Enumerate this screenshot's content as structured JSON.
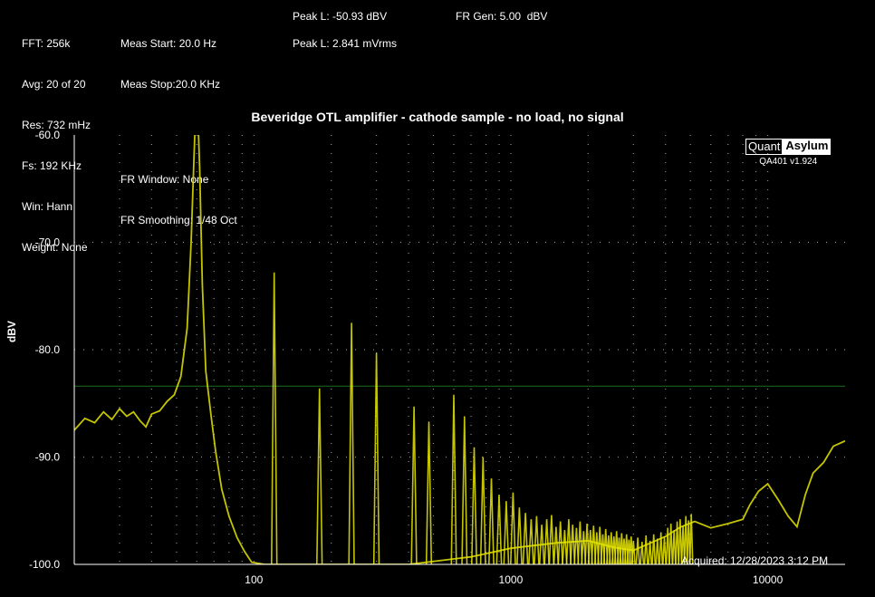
{
  "info": {
    "col1": [
      "FFT: 256k",
      "Avg: 20 of 20",
      "Res: 732 mHz",
      "Fs: 192 KHz",
      "Win: Hann",
      "Weight: None"
    ],
    "col2": [
      "Meas Start: 20.0 Hz",
      "Meas Stop:20.0 KHz",
      "FR Window: None",
      "FR Smoothing: 1/48 Oct"
    ],
    "peak_dbv": "Peak L: -50.93 dBV",
    "peak_mvrms": "Peak L: 2.841 mVrms",
    "fr_gen": "FR Gen: 5.00  dBV"
  },
  "logo": {
    "left": "Quant",
    "right": "Asylum",
    "version": "QA401 v1.924"
  },
  "acquired": "Acquired: 12/28/2023  3:12 PM",
  "colors": {
    "trace": "#e6e600",
    "grid_dot": "#ffffff",
    "ref_line": "#1e6b1e",
    "axis": "#ffffff"
  },
  "chart_data": {
    "type": "line",
    "title": "Beveridge OTL amplifier - cathode sample - no load, no signal",
    "ylabel": "dBV",
    "xlabel": "",
    "x_scale": "log",
    "xlim": [
      20,
      20000
    ],
    "ylim": [
      -100,
      -60
    ],
    "x_ticks": [
      100,
      1000,
      10000
    ],
    "x_tick_labels": [
      "100",
      "1000",
      "10000"
    ],
    "y_ticks": [
      -60,
      -70,
      -80,
      -90,
      -100
    ],
    "y_tick_labels": [
      "-60.0",
      "-70.0",
      "-80.0",
      "-90.0",
      "-100.0"
    ],
    "grid": true,
    "reference_line_dbv": -83.4,
    "noise_floor": [
      {
        "x": 20,
        "y": -87.5
      },
      {
        "x": 22,
        "y": -86.4
      },
      {
        "x": 24,
        "y": -86.8
      },
      {
        "x": 26,
        "y": -85.8
      },
      {
        "x": 28,
        "y": -86.5
      },
      {
        "x": 30,
        "y": -85.5
      },
      {
        "x": 32,
        "y": -86.2
      },
      {
        "x": 34,
        "y": -85.8
      },
      {
        "x": 36,
        "y": -86.6
      },
      {
        "x": 38,
        "y": -87.2
      },
      {
        "x": 40,
        "y": -86.0
      },
      {
        "x": 43,
        "y": -85.7
      },
      {
        "x": 46,
        "y": -84.8
      },
      {
        "x": 49,
        "y": -84.2
      },
      {
        "x": 52,
        "y": -82.5
      },
      {
        "x": 55,
        "y": -78.0
      },
      {
        "x": 57,
        "y": -70.0
      },
      {
        "x": 58.5,
        "y": -62.0
      },
      {
        "x": 59.5,
        "y": -57.0
      },
      {
        "x": 60.5,
        "y": -58.0
      },
      {
        "x": 61.5,
        "y": -63.0
      },
      {
        "x": 63,
        "y": -74.0
      },
      {
        "x": 65,
        "y": -82.0
      },
      {
        "x": 68,
        "y": -86.0
      },
      {
        "x": 71,
        "y": -89.5
      },
      {
        "x": 75,
        "y": -93.0
      },
      {
        "x": 80,
        "y": -95.5
      },
      {
        "x": 86,
        "y": -97.5
      },
      {
        "x": 92,
        "y": -98.8
      },
      {
        "x": 98,
        "y": -99.8
      },
      {
        "x": 110,
        "y": -100
      },
      {
        "x": 400,
        "y": -100
      },
      {
        "x": 700,
        "y": -99.3
      },
      {
        "x": 1000,
        "y": -98.5
      },
      {
        "x": 1500,
        "y": -98.0
      },
      {
        "x": 2000,
        "y": -97.8
      },
      {
        "x": 2500,
        "y": -98.4
      },
      {
        "x": 3000,
        "y": -98.7
      },
      {
        "x": 3500,
        "y": -98.0
      },
      {
        "x": 4000,
        "y": -97.4
      },
      {
        "x": 4600,
        "y": -96.5
      },
      {
        "x": 5200,
        "y": -96.0
      },
      {
        "x": 6000,
        "y": -96.6
      },
      {
        "x": 7000,
        "y": -96.2
      },
      {
        "x": 8000,
        "y": -95.8
      },
      {
        "x": 8500,
        "y": -94.5
      },
      {
        "x": 9200,
        "y": -93.2
      },
      {
        "x": 10000,
        "y": -92.5
      },
      {
        "x": 11000,
        "y": -94.0
      },
      {
        "x": 12000,
        "y": -95.5
      },
      {
        "x": 13000,
        "y": -96.5
      },
      {
        "x": 14000,
        "y": -93.5
      },
      {
        "x": 15000,
        "y": -91.5
      },
      {
        "x": 16500,
        "y": -90.5
      },
      {
        "x": 18000,
        "y": -89.0
      },
      {
        "x": 20000,
        "y": -88.5
      }
    ],
    "harmonics": [
      {
        "x": 120,
        "y": -72.8
      },
      {
        "x": 180,
        "y": -83.6
      },
      {
        "x": 240,
        "y": -77.5
      },
      {
        "x": 300,
        "y": -80.3
      },
      {
        "x": 420,
        "y": -85.3
      },
      {
        "x": 480,
        "y": -86.7
      },
      {
        "x": 600,
        "y": -84.2
      },
      {
        "x": 660,
        "y": -86.2
      },
      {
        "x": 720,
        "y": -89.1
      },
      {
        "x": 780,
        "y": -90.0
      },
      {
        "x": 840,
        "y": -92.0
      },
      {
        "x": 900,
        "y": -93.5
      },
      {
        "x": 960,
        "y": -94.1
      },
      {
        "x": 1020,
        "y": -93.3
      },
      {
        "x": 1080,
        "y": -94.7
      },
      {
        "x": 1140,
        "y": -95.2
      },
      {
        "x": 1200,
        "y": -95.8
      },
      {
        "x": 1260,
        "y": -95.5
      },
      {
        "x": 1320,
        "y": -96.3
      },
      {
        "x": 1380,
        "y": -95.8
      },
      {
        "x": 1440,
        "y": -95.4
      },
      {
        "x": 1500,
        "y": -96.5
      },
      {
        "x": 1560,
        "y": -96.0
      },
      {
        "x": 1620,
        "y": -96.8
      },
      {
        "x": 1680,
        "y": -95.8
      },
      {
        "x": 1740,
        "y": -96.3
      },
      {
        "x": 1800,
        "y": -96.6
      },
      {
        "x": 1860,
        "y": -96.0
      },
      {
        "x": 1920,
        "y": -96.9
      },
      {
        "x": 1980,
        "y": -96.2
      },
      {
        "x": 2040,
        "y": -96.8
      },
      {
        "x": 2100,
        "y": -96.4
      },
      {
        "x": 2160,
        "y": -97.0
      },
      {
        "x": 2220,
        "y": -96.5
      },
      {
        "x": 2280,
        "y": -97.2
      },
      {
        "x": 2340,
        "y": -96.7
      },
      {
        "x": 2400,
        "y": -97.3
      },
      {
        "x": 2460,
        "y": -97.0
      },
      {
        "x": 2520,
        "y": -97.4
      },
      {
        "x": 2580,
        "y": -96.9
      },
      {
        "x": 2640,
        "y": -97.5
      },
      {
        "x": 2700,
        "y": -97.1
      },
      {
        "x": 2760,
        "y": -97.6
      },
      {
        "x": 2820,
        "y": -97.2
      },
      {
        "x": 2880,
        "y": -97.7
      },
      {
        "x": 2940,
        "y": -97.4
      },
      {
        "x": 3000,
        "y": -97.8
      },
      {
        "x": 3120,
        "y": -97.5
      },
      {
        "x": 3240,
        "y": -97.9
      },
      {
        "x": 3360,
        "y": -97.3
      },
      {
        "x": 3480,
        "y": -97.8
      },
      {
        "x": 3600,
        "y": -97.2
      },
      {
        "x": 3720,
        "y": -97.6
      },
      {
        "x": 3840,
        "y": -97.0
      },
      {
        "x": 3960,
        "y": -97.4
      },
      {
        "x": 4080,
        "y": -96.6
      },
      {
        "x": 4200,
        "y": -96.2
      },
      {
        "x": 4320,
        "y": -96.8
      },
      {
        "x": 4440,
        "y": -96.0
      },
      {
        "x": 4560,
        "y": -95.8
      },
      {
        "x": 4680,
        "y": -96.4
      },
      {
        "x": 4800,
        "y": -95.5
      },
      {
        "x": 4920,
        "y": -95.9
      },
      {
        "x": 5040,
        "y": -95.3
      }
    ]
  }
}
